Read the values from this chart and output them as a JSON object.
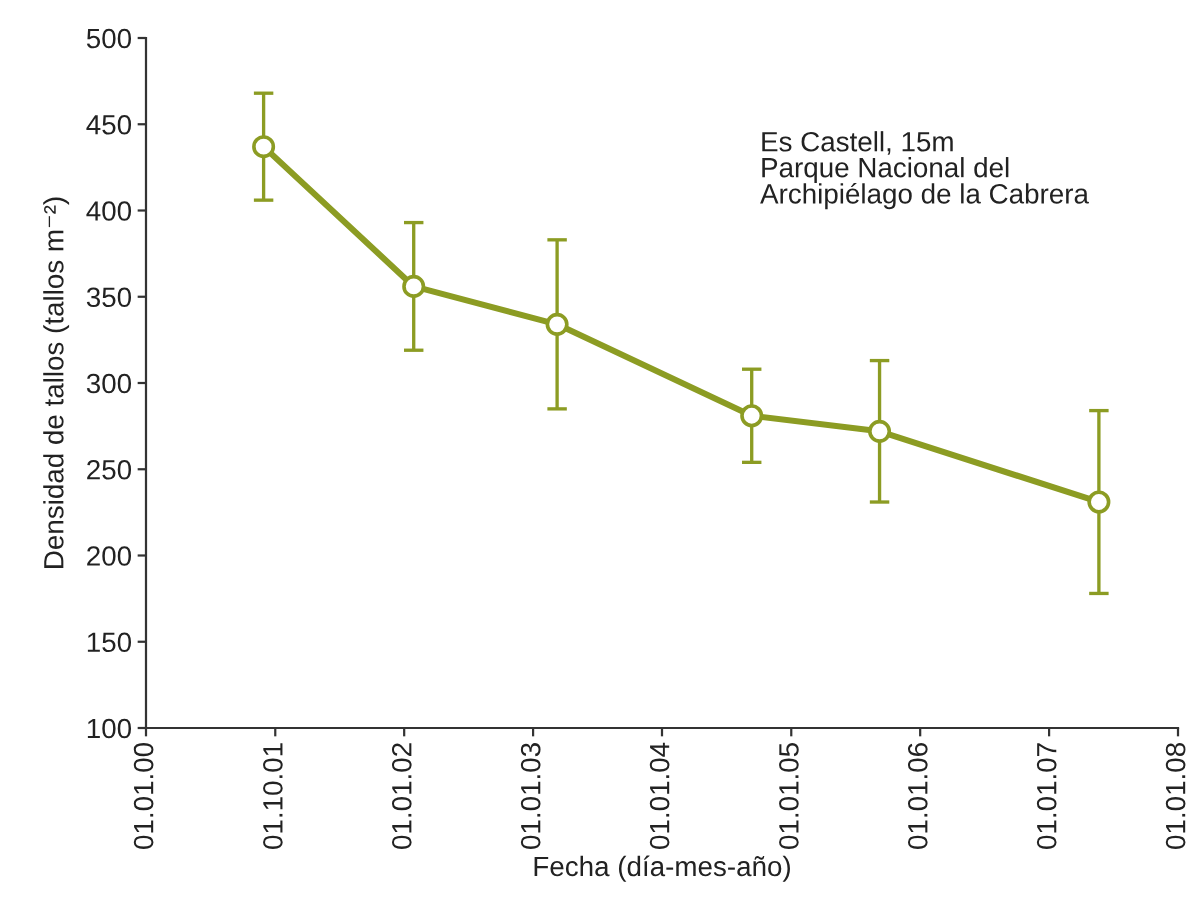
{
  "chart_data": {
    "type": "line",
    "xlabel": "Fecha (día-mes-año)",
    "ylabel": "Densidad de tallos (tallos m⁻²)",
    "annotations": [
      "Es Castell, 15m\nParque Nacional del\nArchipiélago de la Cabrera"
    ],
    "x": [
      "2000-11-29",
      "2002-01-28",
      "2003-03-10",
      "2004-09-11",
      "2005-09-08",
      "2007-05-22"
    ],
    "series": [
      {
        "color": "#8c9c23",
        "values": [
          437,
          356,
          334,
          281,
          272,
          231
        ],
        "errors": [
          31,
          37,
          49,
          27,
          41,
          53
        ]
      }
    ],
    "xlim": [
      "2000-01-01",
      "2008-01-01"
    ],
    "xticks": [
      {
        "value": "2000-01-01",
        "label": "01.01.00"
      },
      {
        "value": "2001-01-01",
        "label": "01.10.01"
      },
      {
        "value": "2002-01-01",
        "label": "01.01.02"
      },
      {
        "value": "2003-01-01",
        "label": "01.01.03"
      },
      {
        "value": "2004-01-01",
        "label": "01.01.04"
      },
      {
        "value": "2005-01-01",
        "label": "01.01.05"
      },
      {
        "value": "2006-01-01",
        "label": "01.01.06"
      },
      {
        "value": "2007-01-01",
        "label": "01.01.07"
      },
      {
        "value": "2008-01-01",
        "label": "01.01.08"
      }
    ],
    "ylim": [
      100,
      500
    ],
    "yticks": [
      100,
      150,
      200,
      250,
      300,
      350,
      400,
      450,
      500
    ],
    "marker": "circle",
    "line_style": "solid"
  }
}
